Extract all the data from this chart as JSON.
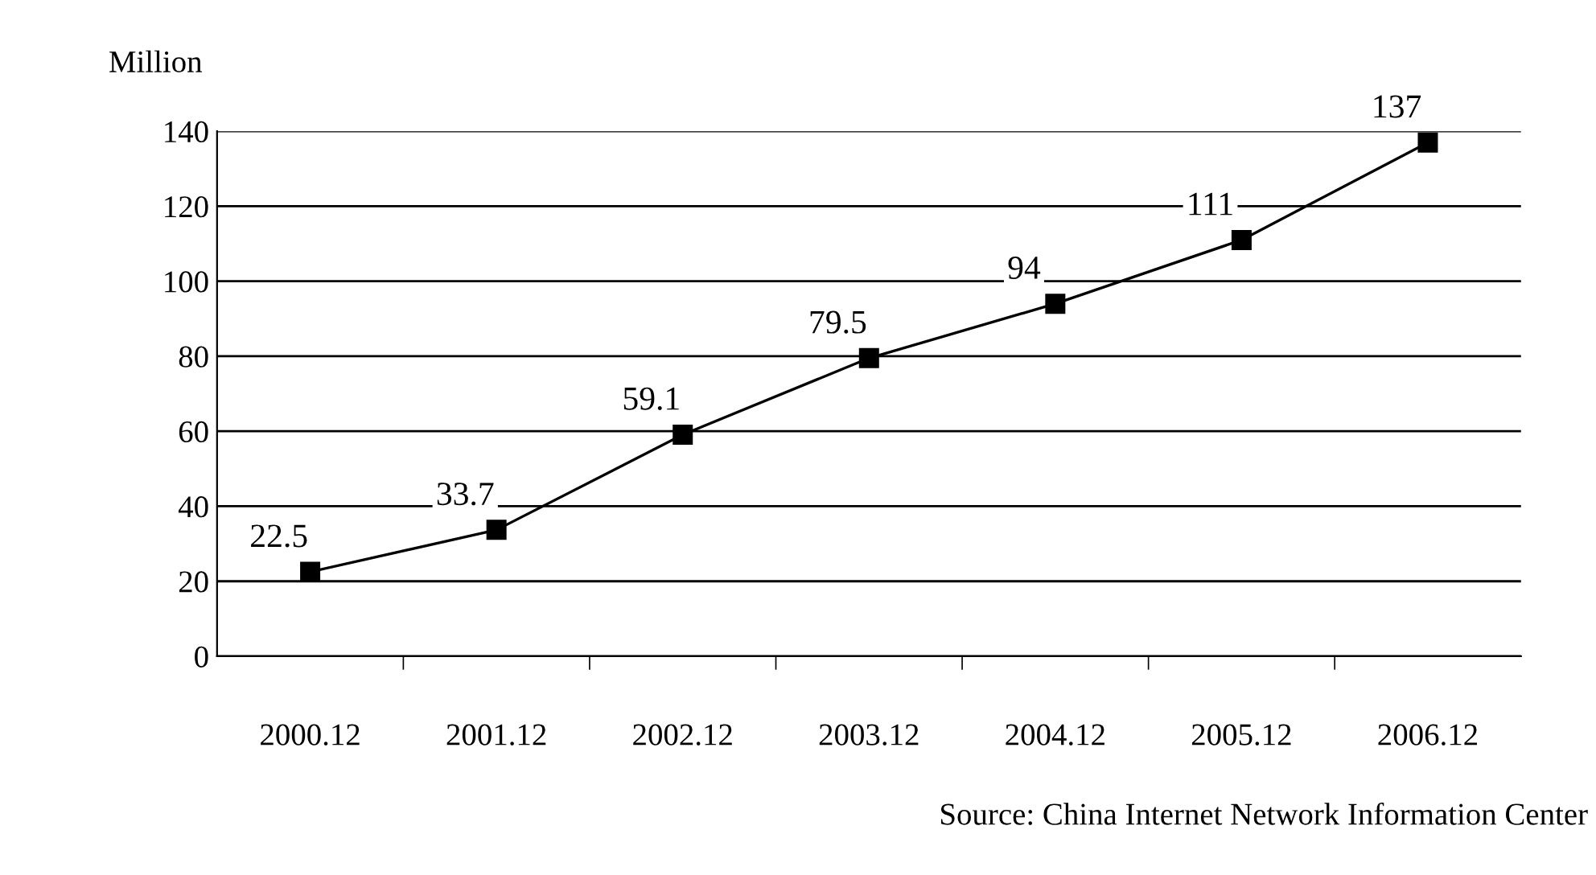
{
  "chart_data": {
    "type": "line",
    "ylabel": "Million",
    "categories": [
      "2000.12",
      "2001.12",
      "2002.12",
      "2003.12",
      "2004.12",
      "2005.12",
      "2006.12"
    ],
    "values": [
      22.5,
      33.7,
      59.1,
      79.5,
      94,
      111,
      137
    ],
    "color": "#000000",
    "marker": "square",
    "line_style": "solid",
    "ylim": [
      0,
      140
    ],
    "yticks": [
      0,
      20,
      40,
      60,
      80,
      100,
      120,
      140
    ],
    "grid": "y",
    "data_labels": true,
    "annotations": [
      "Source: China Internet Network Information Center"
    ]
  }
}
